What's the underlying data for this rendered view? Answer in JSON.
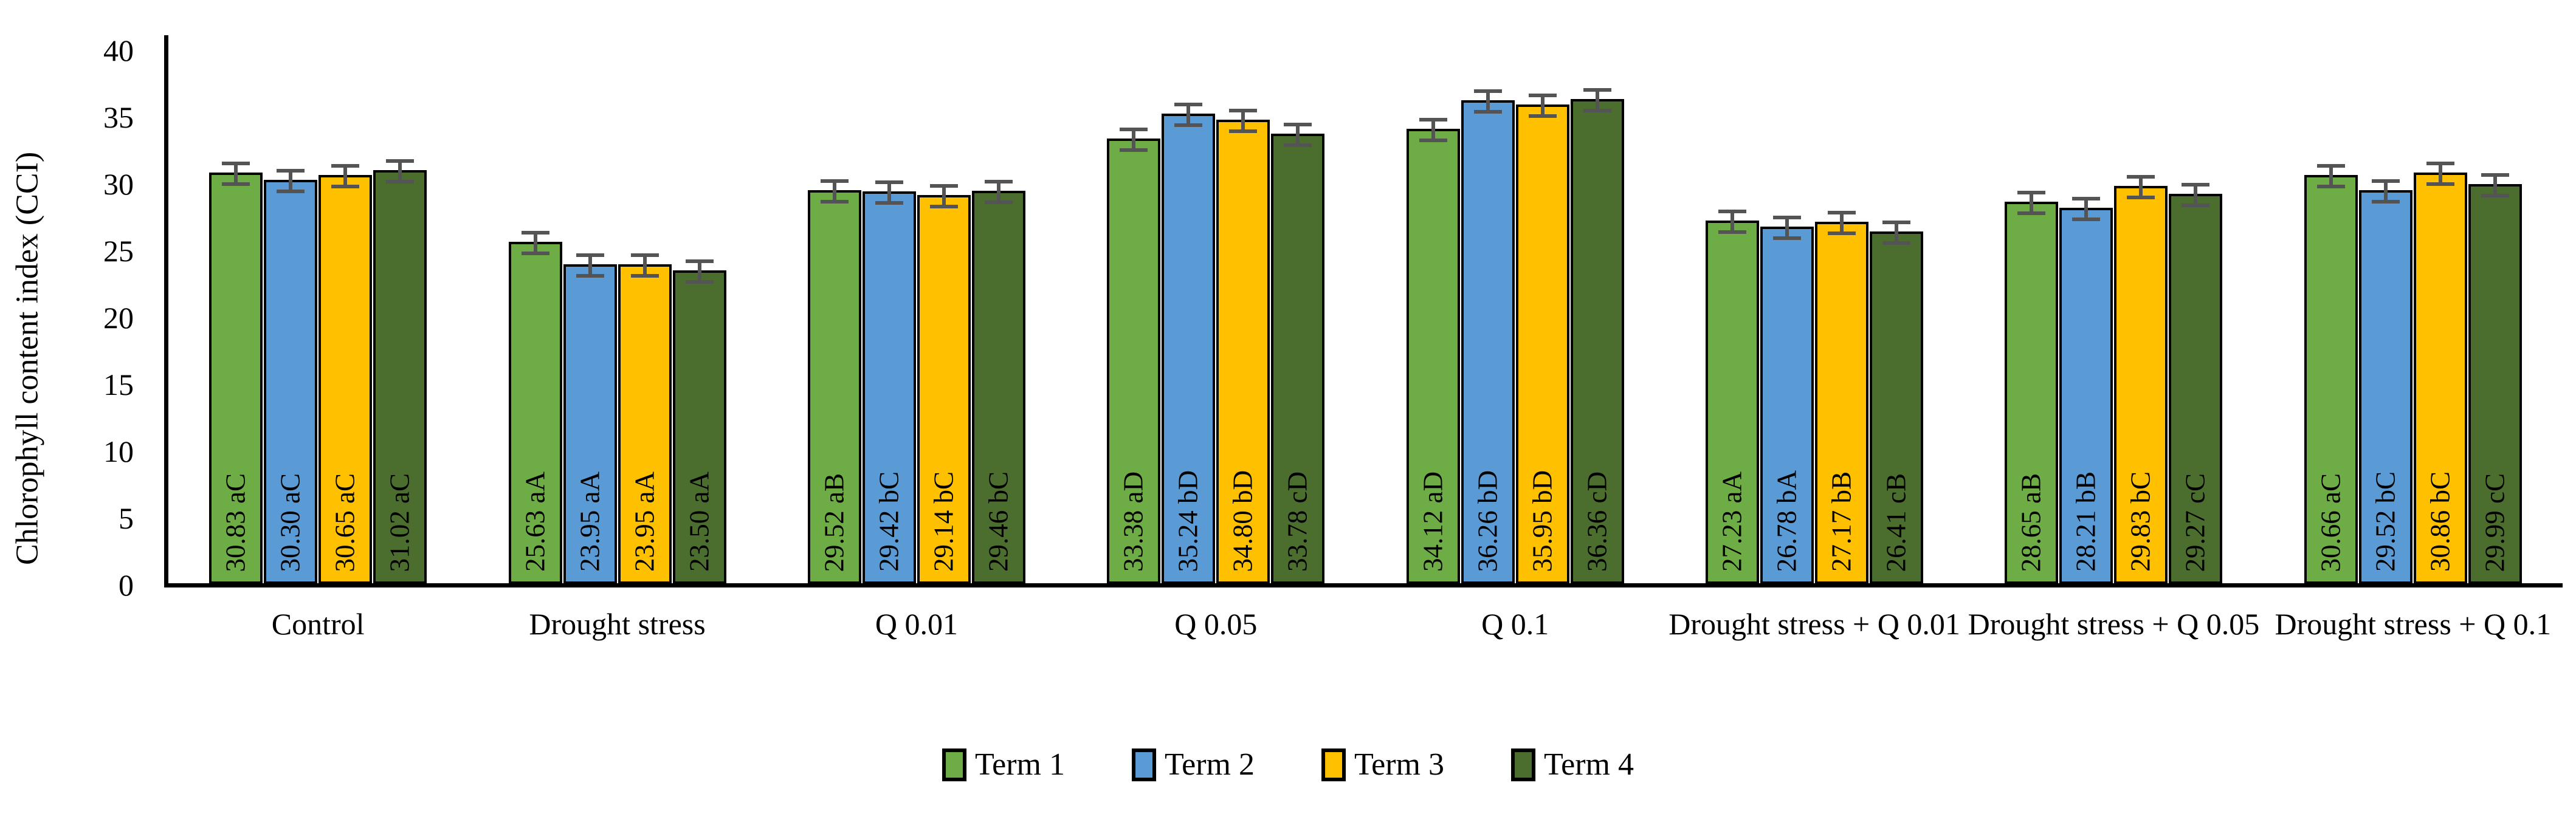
{
  "chart_data": {
    "type": "bar",
    "title": "",
    "ylabel": "Chlorophyll content index (CCI)",
    "xlabel": "",
    "ylim": [
      0,
      40
    ],
    "yticks": [
      40,
      35,
      30,
      25,
      20,
      15,
      10,
      5,
      0
    ],
    "grid": false,
    "legend_position": "bottom-center",
    "error_bars_shown": true,
    "bar_border_color": "#000000",
    "error_bar_color": "#545454",
    "categories": [
      "Control",
      "Drought stress",
      "Q 0.01",
      "Q 0.05",
      "Q 0.1",
      "Drought stress + Q 0.01",
      "Drought stress + Q 0.05",
      "Drought stress + Q 0.1"
    ],
    "series": [
      {
        "name": "Term 1",
        "color": "#6EAD46",
        "values": [
          30.83,
          25.63,
          29.52,
          33.38,
          34.12,
          27.23,
          28.65,
          30.66
        ],
        "bar_labels": [
          "30.83 aC",
          "25.63 aA",
          "29.52 aB",
          "33.38 aD",
          "34.12 aD",
          "27.23 aA",
          "28.65 aB",
          "30.66 aC"
        ]
      },
      {
        "name": "Term 2",
        "color": "#5B9BD5",
        "values": [
          30.3,
          23.95,
          29.42,
          35.24,
          36.26,
          26.78,
          28.21,
          29.52
        ],
        "bar_labels": [
          "30.30 aC",
          "23.95 aA",
          "29.42 bC",
          "35.24 bD",
          "36.26 bD",
          "26.78 bA",
          "28.21 bB",
          "29.52 bC"
        ]
      },
      {
        "name": "Term 3",
        "color": "#FFC000",
        "values": [
          30.65,
          23.95,
          29.14,
          34.8,
          35.95,
          27.17,
          29.83,
          30.86
        ],
        "bar_labels": [
          "30.65 aC",
          "23.95 aA",
          "29.14 bC",
          "34.80 bD",
          "35.95 bD",
          "27.17 bB",
          "29.83 bC",
          "30.86 bC"
        ]
      },
      {
        "name": "Term 4",
        "color": "#4B6E2E",
        "values": [
          31.02,
          23.5,
          29.46,
          33.78,
          36.36,
          26.41,
          29.27,
          29.99
        ],
        "bar_labels": [
          "31.02 aC",
          "23.50 aA",
          "29.46 bC",
          "33.78 cD",
          "36.36 cD",
          "26.41 cB",
          "29.27 cC",
          "29.99 cC"
        ]
      }
    ]
  }
}
